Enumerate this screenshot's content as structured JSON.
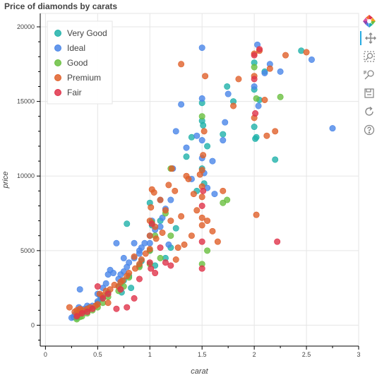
{
  "chart_data": {
    "type": "scatter",
    "title": "Price of diamonds by carats",
    "xlabel": "carat",
    "ylabel": "price",
    "xlim": [
      -0.05,
      3
    ],
    "ylim": [
      -1400,
      20900
    ],
    "xticks": [
      "0",
      "0.5",
      "1",
      "1.5",
      "2",
      "2.5",
      "3"
    ],
    "yticks": [
      "0",
      "5000",
      "10000",
      "15000",
      "20000"
    ],
    "grid": true,
    "legend_position": "top-left",
    "series": [
      {
        "name": "Very Good",
        "color": "#20b2aa",
        "points": [
          [
            0.3,
            500
          ],
          [
            0.31,
            620
          ],
          [
            0.32,
            700
          ],
          [
            0.35,
            900
          ],
          [
            0.38,
            1000
          ],
          [
            0.4,
            1100
          ],
          [
            0.42,
            1200
          ],
          [
            0.5,
            1500
          ],
          [
            0.53,
            1800
          ],
          [
            0.55,
            1900
          ],
          [
            0.6,
            2200
          ],
          [
            0.7,
            2600
          ],
          [
            0.72,
            2800
          ],
          [
            0.73,
            2200
          ],
          [
            0.75,
            3000
          ],
          [
            0.8,
            3300
          ],
          [
            0.82,
            2500
          ],
          [
            0.9,
            4000
          ],
          [
            0.92,
            4300
          ],
          [
            1.0,
            5000
          ],
          [
            1.0,
            8200
          ],
          [
            1.02,
            6700
          ],
          [
            1.05,
            4000
          ],
          [
            1.1,
            7000
          ],
          [
            1.15,
            4500
          ],
          [
            1.2,
            5200
          ],
          [
            1.25,
            6500
          ],
          [
            1.35,
            11300
          ],
          [
            1.4,
            12600
          ],
          [
            1.45,
            9000
          ],
          [
            1.5,
            14900
          ],
          [
            1.5,
            13700
          ],
          [
            1.51,
            13400
          ],
          [
            1.5,
            10500
          ],
          [
            1.52,
            9500
          ],
          [
            1.55,
            12000
          ],
          [
            1.7,
            12800
          ],
          [
            1.74,
            16000
          ],
          [
            1.8,
            15000
          ],
          [
            2.0,
            17600
          ],
          [
            2.0,
            15800
          ],
          [
            2.0,
            13300
          ],
          [
            2.01,
            12500
          ],
          [
            2.02,
            12600
          ],
          [
            2.05,
            15100
          ],
          [
            2.1,
            17000
          ],
          [
            2.2,
            11100
          ],
          [
            2.45,
            18400
          ],
          [
            0.78,
            6800
          ]
        ]
      },
      {
        "name": "Ideal",
        "color": "#4a86e8",
        "points": [
          [
            0.25,
            500
          ],
          [
            0.27,
            550
          ],
          [
            0.28,
            700
          ],
          [
            0.3,
            800
          ],
          [
            0.32,
            1200
          ],
          [
            0.34,
            1000
          ],
          [
            0.33,
            2400
          ],
          [
            0.37,
            1100
          ],
          [
            0.4,
            1300
          ],
          [
            0.45,
            1300
          ],
          [
            0.5,
            1600
          ],
          [
            0.52,
            2000
          ],
          [
            0.55,
            2500
          ],
          [
            0.58,
            2800
          ],
          [
            0.6,
            3400
          ],
          [
            0.62,
            3700
          ],
          [
            0.65,
            3500
          ],
          [
            0.7,
            3100
          ],
          [
            0.72,
            3400
          ],
          [
            0.75,
            3600
          ],
          [
            0.78,
            3900
          ],
          [
            0.8,
            4200
          ],
          [
            0.85,
            4500
          ],
          [
            0.9,
            5000
          ],
          [
            0.92,
            5200
          ],
          [
            0.95,
            5500
          ],
          [
            1.0,
            5500
          ],
          [
            1.0,
            6000
          ],
          [
            1.02,
            7000
          ],
          [
            1.05,
            6400
          ],
          [
            1.1,
            6600
          ],
          [
            1.12,
            7200
          ],
          [
            1.15,
            7800
          ],
          [
            1.18,
            5400
          ],
          [
            1.2,
            8400
          ],
          [
            1.22,
            10500
          ],
          [
            1.25,
            13000
          ],
          [
            1.3,
            14800
          ],
          [
            1.35,
            11900
          ],
          [
            1.4,
            9800
          ],
          [
            1.45,
            12700
          ],
          [
            1.5,
            18600
          ],
          [
            1.5,
            15200
          ],
          [
            1.5,
            12400
          ],
          [
            1.5,
            11200
          ],
          [
            1.52,
            10200
          ],
          [
            1.55,
            9200
          ],
          [
            1.6,
            11000
          ],
          [
            1.62,
            8800
          ],
          [
            1.7,
            12400
          ],
          [
            1.72,
            13600
          ],
          [
            1.75,
            15500
          ],
          [
            2.0,
            16000
          ],
          [
            2.03,
            18800
          ],
          [
            2.04,
            14700
          ],
          [
            2.1,
            16900
          ],
          [
            2.15,
            17500
          ],
          [
            2.25,
            17000
          ],
          [
            2.55,
            17800
          ],
          [
            2.75,
            13200
          ],
          [
            0.5,
            2100
          ],
          [
            0.75,
            4500
          ],
          [
            0.85,
            5500
          ],
          [
            1.1,
            8400
          ],
          [
            0.9,
            4800
          ],
          [
            0.68,
            5500
          ]
        ]
      },
      {
        "name": "Good",
        "color": "#6abf40",
        "points": [
          [
            0.3,
            400
          ],
          [
            0.33,
            550
          ],
          [
            0.35,
            600
          ],
          [
            0.4,
            800
          ],
          [
            0.45,
            1000
          ],
          [
            0.5,
            1200
          ],
          [
            0.55,
            1500
          ],
          [
            0.6,
            1900
          ],
          [
            0.7,
            2300
          ],
          [
            0.75,
            2600
          ],
          [
            0.8,
            3200
          ],
          [
            0.9,
            3900
          ],
          [
            1.0,
            4100
          ],
          [
            1.0,
            5000
          ],
          [
            1.02,
            6900
          ],
          [
            1.05,
            6000
          ],
          [
            1.1,
            4500
          ],
          [
            1.2,
            6000
          ],
          [
            1.5,
            4100
          ],
          [
            1.5,
            14000
          ],
          [
            1.55,
            5000
          ],
          [
            1.7,
            8200
          ],
          [
            1.74,
            8400
          ],
          [
            2.0,
            17300
          ],
          [
            2.02,
            15200
          ],
          [
            2.25,
            15300
          ],
          [
            1.2,
            10500
          ],
          [
            1.15,
            7500
          ]
        ]
      },
      {
        "name": "Premium",
        "color": "#e0602a",
        "points": [
          [
            0.23,
            1200
          ],
          [
            0.28,
            900
          ],
          [
            0.3,
            1000
          ],
          [
            0.31,
            700
          ],
          [
            0.33,
            1100
          ],
          [
            0.34,
            900
          ],
          [
            0.36,
            1000
          ],
          [
            0.4,
            1100
          ],
          [
            0.43,
            1200
          ],
          [
            0.48,
            1300
          ],
          [
            0.5,
            1400
          ],
          [
            0.52,
            2100
          ],
          [
            0.55,
            2000
          ],
          [
            0.58,
            2300
          ],
          [
            0.6,
            1500
          ],
          [
            0.62,
            2400
          ],
          [
            0.66,
            2700
          ],
          [
            0.7,
            2600
          ],
          [
            0.72,
            2900
          ],
          [
            0.74,
            3000
          ],
          [
            0.78,
            3300
          ],
          [
            0.8,
            3500
          ],
          [
            0.86,
            3800
          ],
          [
            0.9,
            4100
          ],
          [
            0.92,
            4400
          ],
          [
            0.96,
            4800
          ],
          [
            1.0,
            5100
          ],
          [
            1.0,
            6000
          ],
          [
            1.0,
            7000
          ],
          [
            1.01,
            7900
          ],
          [
            1.02,
            9100
          ],
          [
            1.04,
            8900
          ],
          [
            1.05,
            6600
          ],
          [
            1.06,
            5800
          ],
          [
            1.1,
            8400
          ],
          [
            1.12,
            6200
          ],
          [
            1.15,
            7700
          ],
          [
            1.18,
            9400
          ],
          [
            1.2,
            7000
          ],
          [
            1.21,
            10500
          ],
          [
            1.24,
            9000
          ],
          [
            1.25,
            4400
          ],
          [
            1.3,
            17500
          ],
          [
            1.3,
            7300
          ],
          [
            1.33,
            5400
          ],
          [
            1.35,
            10000
          ],
          [
            1.37,
            9800
          ],
          [
            1.4,
            6000
          ],
          [
            1.42,
            8800
          ],
          [
            1.45,
            7700
          ],
          [
            1.48,
            10100
          ],
          [
            1.5,
            6700
          ],
          [
            1.5,
            7200
          ],
          [
            1.5,
            8600
          ],
          [
            1.5,
            9300
          ],
          [
            1.5,
            10400
          ],
          [
            1.51,
            11400
          ],
          [
            1.52,
            13000
          ],
          [
            1.53,
            16700
          ],
          [
            1.55,
            7000
          ],
          [
            1.6,
            6300
          ],
          [
            1.65,
            5600
          ],
          [
            1.7,
            9000
          ],
          [
            1.8,
            14700
          ],
          [
            1.85,
            16500
          ],
          [
            2.0,
            18200
          ],
          [
            2.0,
            16700
          ],
          [
            2.0,
            13900
          ],
          [
            2.02,
            7400
          ],
          [
            2.05,
            18400
          ],
          [
            2.1,
            15100
          ],
          [
            2.12,
            12700
          ],
          [
            2.15,
            17200
          ],
          [
            2.2,
            13000
          ],
          [
            2.3,
            18100
          ],
          [
            2.5,
            18300
          ],
          [
            1.27,
            5200
          ],
          [
            0.85,
            4600
          ]
        ]
      },
      {
        "name": "Fair",
        "color": "#e0334a",
        "points": [
          [
            0.3,
            600
          ],
          [
            0.35,
            800
          ],
          [
            0.4,
            900
          ],
          [
            0.45,
            1100
          ],
          [
            0.5,
            2600
          ],
          [
            0.55,
            1800
          ],
          [
            0.6,
            2100
          ],
          [
            0.68,
            1100
          ],
          [
            0.72,
            2400
          ],
          [
            0.78,
            1200
          ],
          [
            0.85,
            1800
          ],
          [
            0.9,
            3100
          ],
          [
            1.0,
            4200
          ],
          [
            1.01,
            3800
          ],
          [
            1.02,
            6800
          ],
          [
            1.05,
            3500
          ],
          [
            1.1,
            5200
          ],
          [
            1.15,
            4200
          ],
          [
            1.5,
            3800
          ],
          [
            1.5,
            5600
          ],
          [
            1.5,
            8000
          ],
          [
            1.51,
            9000
          ],
          [
            2.0,
            18100
          ],
          [
            2.0,
            16500
          ],
          [
            2.01,
            14200
          ],
          [
            2.05,
            18500
          ],
          [
            2.22,
            5600
          ],
          [
            1.2,
            4000
          ]
        ]
      }
    ]
  },
  "toolbar": {
    "tools": [
      "bokeh-logo-icon",
      "pan-icon",
      "box-zoom-icon",
      "wheel-zoom-icon",
      "save-icon",
      "reset-icon",
      "help-icon"
    ]
  }
}
